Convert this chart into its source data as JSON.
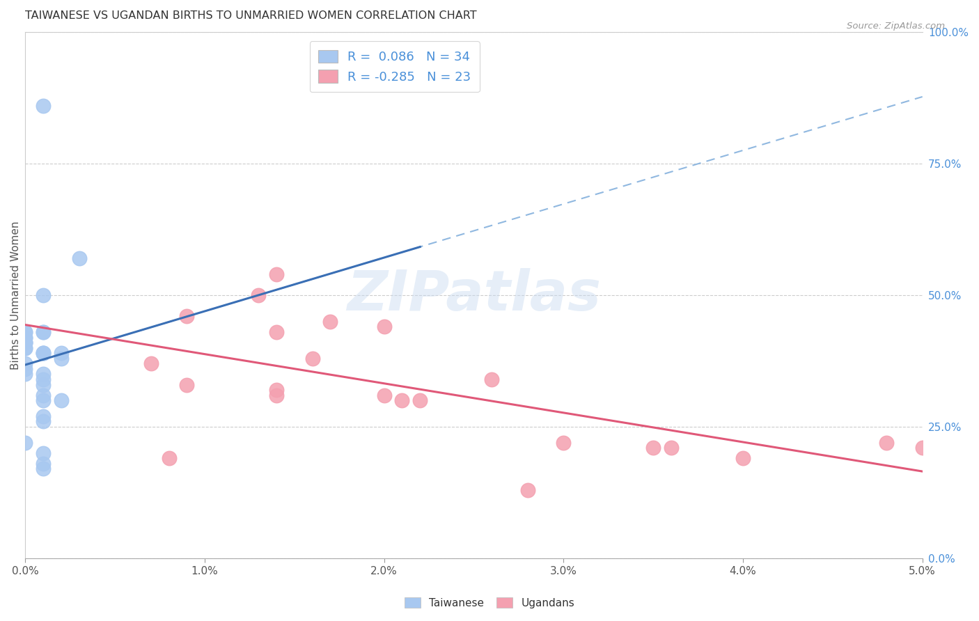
{
  "title": "TAIWANESE VS UGANDAN BIRTHS TO UNMARRIED WOMEN CORRELATION CHART",
  "source": "Source: ZipAtlas.com",
  "ylabel": "Births to Unmarried Women",
  "xlabel": "",
  "xlim": [
    0.0,
    0.05
  ],
  "ylim": [
    0.0,
    1.0
  ],
  "watermark": "ZIPatlas",
  "right_yticks": [
    0.0,
    0.25,
    0.5,
    0.75,
    1.0
  ],
  "right_yticklabels": [
    "0.0%",
    "25.0%",
    "50.0%",
    "75.0%",
    "100.0%"
  ],
  "xtick_labels": [
    "0.0%",
    "1.0%",
    "2.0%",
    "3.0%",
    "4.0%",
    "5.0%"
  ],
  "xtick_vals": [
    0.0,
    0.01,
    0.02,
    0.03,
    0.04,
    0.05
  ],
  "taiwan_R": 0.086,
  "taiwan_N": 34,
  "uganda_R": -0.285,
  "uganda_N": 23,
  "taiwan_color": "#a8c8f0",
  "uganda_color": "#f4a0b0",
  "taiwan_line_color": "#3a6fb5",
  "uganda_line_color": "#e05878",
  "dashed_line_color": "#90b8e0",
  "taiwan_scatter": [
    [
      0.001,
      0.86
    ],
    [
      0.003,
      0.57
    ],
    [
      0.001,
      0.5
    ],
    [
      0.0,
      0.43
    ],
    [
      0.0,
      0.43
    ],
    [
      0.001,
      0.43
    ],
    [
      0.001,
      0.43
    ],
    [
      0.0,
      0.42
    ],
    [
      0.0,
      0.42
    ],
    [
      0.0,
      0.41
    ],
    [
      0.0,
      0.41
    ],
    [
      0.0,
      0.41
    ],
    [
      0.0,
      0.4
    ],
    [
      0.0,
      0.4
    ],
    [
      0.001,
      0.39
    ],
    [
      0.001,
      0.39
    ],
    [
      0.001,
      0.39
    ],
    [
      0.002,
      0.39
    ],
    [
      0.002,
      0.38
    ],
    [
      0.0,
      0.37
    ],
    [
      0.0,
      0.36
    ],
    [
      0.0,
      0.35
    ],
    [
      0.001,
      0.35
    ],
    [
      0.001,
      0.34
    ],
    [
      0.001,
      0.33
    ],
    [
      0.001,
      0.31
    ],
    [
      0.001,
      0.3
    ],
    [
      0.002,
      0.3
    ],
    [
      0.001,
      0.27
    ],
    [
      0.001,
      0.26
    ],
    [
      0.0,
      0.22
    ],
    [
      0.001,
      0.2
    ],
    [
      0.001,
      0.18
    ],
    [
      0.001,
      0.17
    ]
  ],
  "uganda_scatter": [
    [
      0.014,
      0.54
    ],
    [
      0.013,
      0.5
    ],
    [
      0.009,
      0.46
    ],
    [
      0.017,
      0.45
    ],
    [
      0.02,
      0.44
    ],
    [
      0.014,
      0.43
    ],
    [
      0.016,
      0.38
    ],
    [
      0.007,
      0.37
    ],
    [
      0.009,
      0.33
    ],
    [
      0.014,
      0.32
    ],
    [
      0.014,
      0.31
    ],
    [
      0.02,
      0.31
    ],
    [
      0.021,
      0.3
    ],
    [
      0.022,
      0.3
    ],
    [
      0.026,
      0.34
    ],
    [
      0.03,
      0.22
    ],
    [
      0.048,
      0.22
    ],
    [
      0.036,
      0.21
    ],
    [
      0.035,
      0.21
    ],
    [
      0.008,
      0.19
    ],
    [
      0.04,
      0.19
    ],
    [
      0.028,
      0.13
    ],
    [
      0.05,
      0.21
    ]
  ]
}
